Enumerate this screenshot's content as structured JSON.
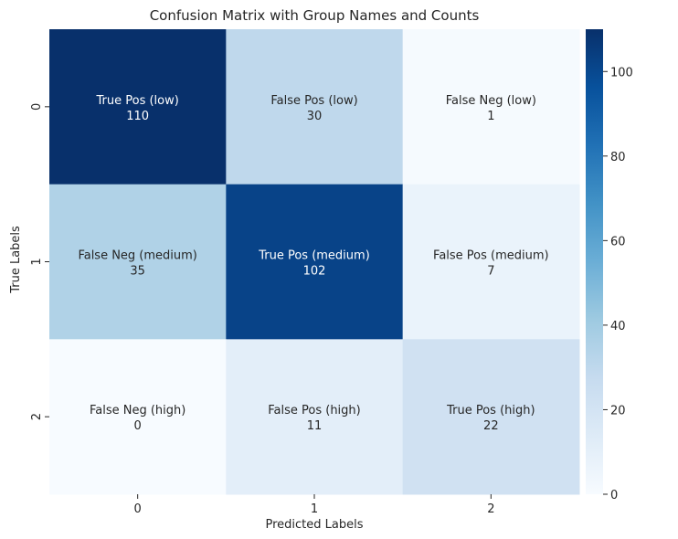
{
  "chart_data": {
    "type": "heatmap",
    "title": "Confusion Matrix with Group Names and Counts",
    "xlabel": "Predicted Labels",
    "ylabel": "True Labels",
    "x_categories": [
      "0",
      "1",
      "2"
    ],
    "y_categories": [
      "0",
      "1",
      "2"
    ],
    "values": [
      [
        110,
        30,
        1
      ],
      [
        35,
        102,
        7
      ],
      [
        0,
        11,
        22
      ]
    ],
    "group_names": [
      [
        "True Pos (low)",
        "False Pos (low)",
        "False Neg (low)"
      ],
      [
        "False Neg (medium)",
        "True Pos (medium)",
        "False Pos (medium)"
      ],
      [
        "False Neg (high)",
        "False Pos (high)",
        "True Pos (high)"
      ]
    ],
    "colormap": "Blues",
    "vmin": 0,
    "vmax": 110,
    "colorbar_ticks": [
      "0",
      "20",
      "40",
      "60",
      "80",
      "100"
    ]
  }
}
